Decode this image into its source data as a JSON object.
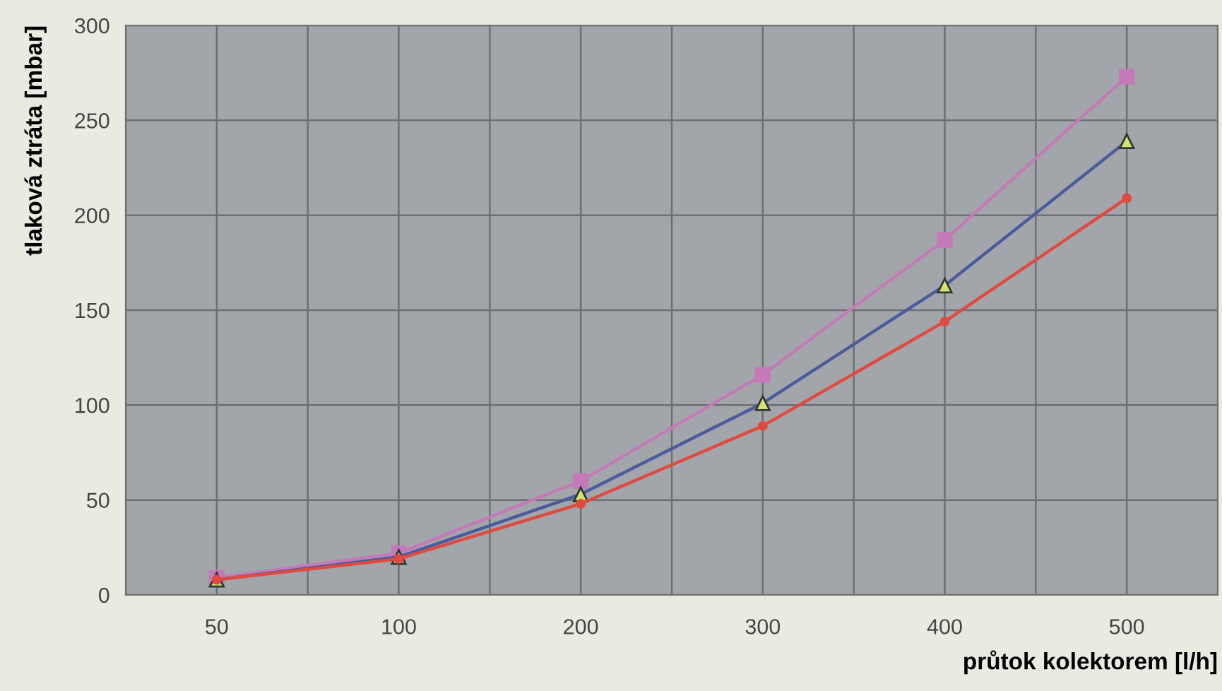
{
  "chart_data": {
    "type": "line",
    "xlabel": "průtok kolektorem [l/h]",
    "ylabel": "tlaková ztráta [mbar]",
    "categories": [
      "50",
      "100",
      "200",
      "300",
      "400",
      "500"
    ],
    "series": [
      {
        "color": "#c47ab8",
        "marker": "square",
        "values": [
          9,
          22,
          60,
          116,
          187,
          273
        ]
      },
      {
        "color": "#4a5c9c",
        "marker": "triangle",
        "values": [
          8,
          20,
          53,
          101,
          163,
          239
        ]
      },
      {
        "color": "#e04a40",
        "marker": "circle",
        "values": [
          8,
          19,
          48,
          89,
          144,
          209
        ]
      }
    ],
    "ylim": [
      0,
      300
    ],
    "yticks": [
      0,
      50,
      100,
      150,
      200,
      250,
      300
    ],
    "grid": true
  }
}
